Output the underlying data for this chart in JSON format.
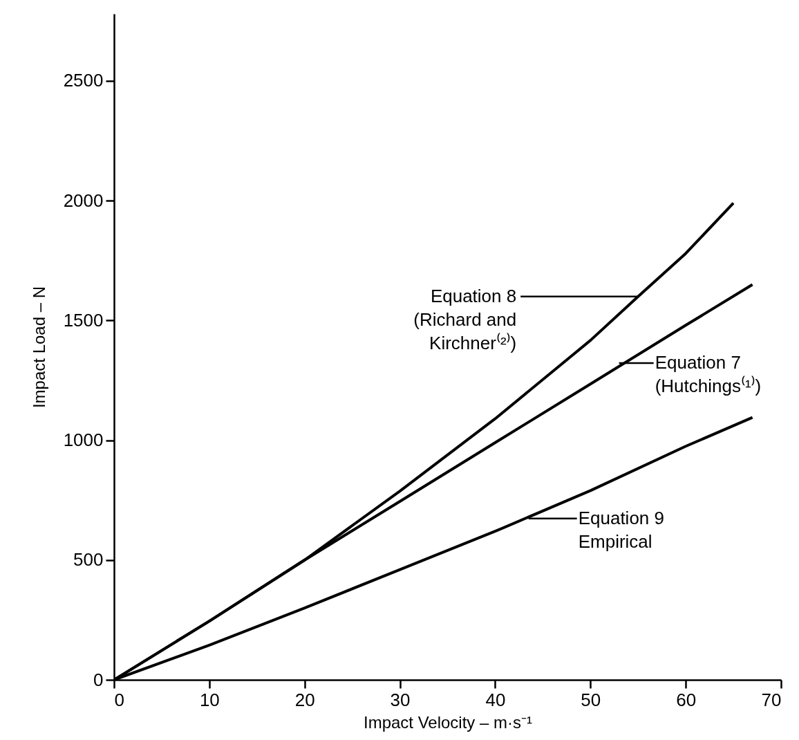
{
  "chart_data": {
    "type": "line",
    "xlabel": "Impact Velocity – m·s⁻¹",
    "ylabel": "Impact Load – N",
    "xlim": [
      0,
      70
    ],
    "ylim": [
      0,
      2780
    ],
    "xticks": [
      0,
      10,
      20,
      30,
      40,
      50,
      60,
      70
    ],
    "yticks": [
      0,
      500,
      1000,
      1500,
      2000,
      2500
    ],
    "grid": false,
    "marker": "none",
    "line_style": "solid",
    "series": [
      {
        "color": "#000000",
        "x": [
          0,
          10,
          20,
          30,
          40,
          50,
          55,
          60,
          65
        ],
        "values": [
          0,
          245,
          500,
          788,
          1090,
          1417,
          1600,
          1780,
          1990
        ]
      },
      {
        "color": "#000000",
        "x": [
          0,
          10,
          20,
          30,
          40,
          50,
          60,
          67
        ],
        "values": [
          0,
          245,
          500,
          745,
          990,
          1235,
          1480,
          1650
        ]
      },
      {
        "color": "#000000",
        "x": [
          0,
          10,
          20,
          30,
          40,
          50,
          60,
          67
        ],
        "values": [
          0,
          145,
          300,
          460,
          620,
          790,
          975,
          1095
        ]
      }
    ],
    "annotations": [
      {
        "text": "Equation 8\n(Richard and\nKirchner⁽²⁾)",
        "x": 55,
        "y": 1600
      },
      {
        "text": "Equation 7\n(Hutchings⁽¹⁾)",
        "x": 53,
        "y": 1322
      },
      {
        "text": "Equation 9\nEmpirical",
        "x": 43.5,
        "y": 673
      }
    ]
  }
}
